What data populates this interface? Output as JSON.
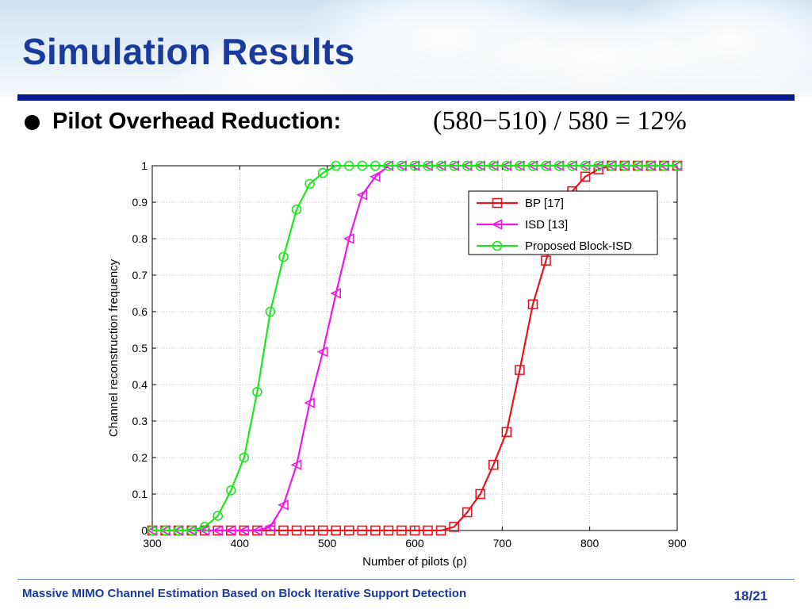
{
  "slide": {
    "title": "Simulation Results",
    "bullet": "Pilot Overhead Reduction:",
    "formula": "(580−510) / 580 = 12%",
    "footer": "Massive MIMO Channel Estimation Based on Block Iterative Support Detection",
    "page_number": "18/21"
  },
  "chart_data": {
    "type": "line",
    "title": "",
    "xlabel": "Number of pilots (p)",
    "ylabel": "Channel reconstruction frequency",
    "xlim": [
      300,
      900
    ],
    "ylim": [
      0,
      1
    ],
    "x_ticks": [
      300,
      400,
      500,
      600,
      700,
      800,
      900
    ],
    "y_ticks": [
      0,
      0.1,
      0.2,
      0.3,
      0.4,
      0.5,
      0.6,
      0.7,
      0.8,
      0.9,
      1
    ],
    "grid": true,
    "legend_position": "top-right",
    "series": [
      {
        "name": "BP [17]",
        "color": "#e8141c",
        "marker": "square",
        "x": [
          300,
          315,
          330,
          345,
          360,
          375,
          390,
          405,
          420,
          435,
          450,
          465,
          480,
          495,
          510,
          525,
          540,
          555,
          570,
          585,
          600,
          615,
          630,
          645,
          660,
          675,
          690,
          705,
          720,
          735,
          750,
          765,
          780,
          795,
          810,
          825,
          840,
          855,
          870,
          885,
          900
        ],
        "y": [
          0,
          0,
          0,
          0,
          0,
          0,
          0,
          0,
          0,
          0,
          0,
          0,
          0,
          0,
          0,
          0,
          0,
          0,
          0,
          0,
          0,
          0,
          0,
          0.01,
          0.05,
          0.1,
          0.18,
          0.27,
          0.44,
          0.62,
          0.74,
          0.86,
          0.93,
          0.97,
          0.99,
          1,
          1,
          1,
          1,
          1,
          1
        ]
      },
      {
        "name": "ISD [13]",
        "color": "#f018e8",
        "marker": "triangle-left",
        "x": [
          300,
          315,
          330,
          345,
          360,
          375,
          390,
          405,
          420,
          435,
          450,
          465,
          480,
          495,
          510,
          525,
          540,
          555,
          570,
          585,
          600,
          615,
          630,
          645,
          660,
          675,
          690,
          705,
          720,
          735,
          750,
          765,
          780,
          795,
          810,
          825,
          840,
          855,
          870,
          885,
          900
        ],
        "y": [
          0,
          0,
          0,
          0,
          0,
          0,
          0,
          0,
          0,
          0.01,
          0.07,
          0.18,
          0.35,
          0.49,
          0.65,
          0.8,
          0.92,
          0.97,
          1,
          1,
          1,
          1,
          1,
          1,
          1,
          1,
          1,
          1,
          1,
          1,
          1,
          1,
          1,
          1,
          1,
          1,
          1,
          1,
          1,
          1,
          1
        ]
      },
      {
        "name": "Proposed Block-ISD",
        "color": "#1ee61e",
        "marker": "circle",
        "x": [
          300,
          315,
          330,
          345,
          360,
          375,
          390,
          405,
          420,
          435,
          450,
          465,
          480,
          495,
          510,
          525,
          540,
          555,
          570,
          585,
          600,
          615,
          630,
          645,
          660,
          675,
          690,
          705,
          720,
          735,
          750,
          765,
          780,
          795,
          810,
          825,
          840,
          855,
          870,
          885,
          900
        ],
        "y": [
          0,
          0,
          0,
          0,
          0.01,
          0.04,
          0.11,
          0.2,
          0.38,
          0.6,
          0.75,
          0.88,
          0.95,
          0.98,
          1,
          1,
          1,
          1,
          1,
          1,
          1,
          1,
          1,
          1,
          1,
          1,
          1,
          1,
          1,
          1,
          1,
          1,
          1,
          1,
          1,
          1,
          1,
          1,
          1,
          1,
          1
        ]
      }
    ]
  }
}
